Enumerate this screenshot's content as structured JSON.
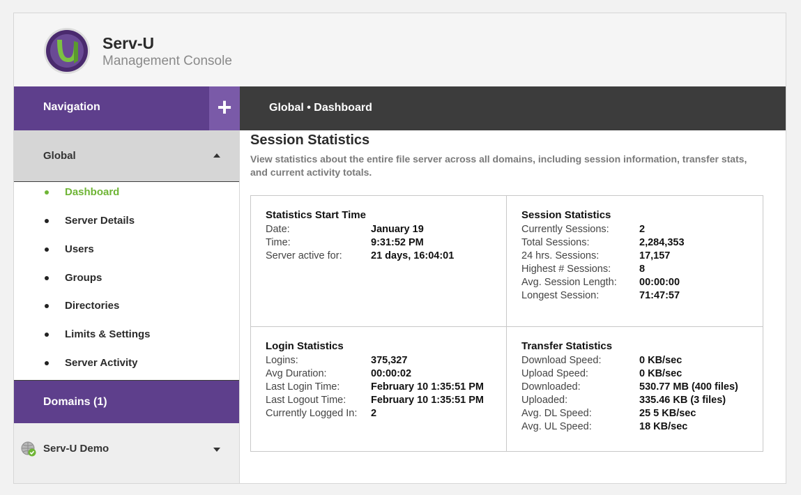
{
  "app": {
    "title": "Serv-U",
    "subtitle": "Management Console"
  },
  "navigation": {
    "title": "Navigation",
    "add_symbol": "+"
  },
  "breadcrumb": {
    "text": "Global • Dashboard"
  },
  "sidebar": {
    "global_label": "Global",
    "items": [
      {
        "label": "Dashboard",
        "active": true
      },
      {
        "label": "Server Details",
        "active": false
      },
      {
        "label": "Users",
        "active": false
      },
      {
        "label": "Groups",
        "active": false
      },
      {
        "label": "Directories",
        "active": false
      },
      {
        "label": "Limits & Settings",
        "active": false
      },
      {
        "label": "Server Activity",
        "active": false
      }
    ],
    "domains_label": "Domains (1)",
    "domain_item": "Serv-U Demo"
  },
  "main": {
    "title": "Session Statistics",
    "description": "View statistics about the entire file server across all domains, including session information, transfer stats, and current activity totals."
  },
  "panels": {
    "start_time": {
      "title": "Statistics Start Time",
      "rows": [
        {
          "k": "Date:",
          "v": "January 19"
        },
        {
          "k": "Time:",
          "v": "9:31:52 PM"
        },
        {
          "k": "Server active for:",
          "v": "21 days, 16:04:01"
        }
      ]
    },
    "session": {
      "title": "Session Statistics",
      "rows": [
        {
          "k": "Currently Sessions:",
          "v": "2"
        },
        {
          "k": "Total Sessions:",
          "v": "2,284,353"
        },
        {
          "k": "24 hrs. Sessions:",
          "v": "17,157"
        },
        {
          "k": "Highest # Sessions:",
          "v": "8"
        },
        {
          "k": "Avg. Session Length:",
          "v": "00:00:00"
        },
        {
          "k": "Longest Session:",
          "v": "71:47:57"
        }
      ]
    },
    "login": {
      "title": "Login Statistics",
      "rows": [
        {
          "k": "Logins:",
          "v": "375,327"
        },
        {
          "k": "Avg Duration:",
          "v": "00:00:02"
        },
        {
          "k": "Last Login Time:",
          "v": "February 10  1:35:51 PM"
        },
        {
          "k": "Last Logout Time:",
          "v": "February 10  1:35:51 PM"
        },
        {
          "k": "Currently Logged In:",
          "v": "2"
        }
      ]
    },
    "transfer": {
      "title": "Transfer Statistics",
      "rows": [
        {
          "k": "Download Speed:",
          "v": "0 KB/sec"
        },
        {
          "k": "Upload Speed:",
          "v": "0 KB/sec"
        },
        {
          "k": "Downloaded:",
          "v": "530.77 MB (400 files)"
        },
        {
          "k": "Uploaded:",
          "v": "335.46 KB (3 files)"
        },
        {
          "k": "Avg. DL Speed:",
          "v": "25  5 KB/sec"
        },
        {
          "k": "Avg. UL Speed:",
          "v": "18 KB/sec"
        }
      ]
    }
  },
  "colors": {
    "purple": "#5e3f8c",
    "purple_light": "#7a5aa8",
    "dark_bar": "#3c3c3c",
    "active_green": "#6fb536"
  },
  "icons": {
    "logo": "serv-u-logo-icon",
    "globe": "globe-check-icon",
    "plus": "plus-icon",
    "caret_up": "caret-up-icon",
    "caret_down": "caret-down-icon"
  }
}
